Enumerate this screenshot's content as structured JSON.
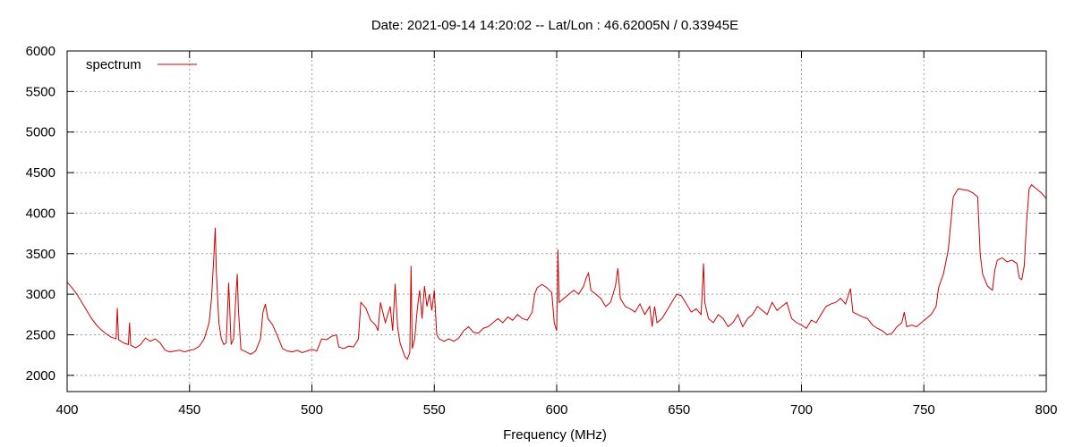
{
  "chart_data": {
    "type": "line",
    "title": "Date: 2021-09-14 14:20:02  --  Lat/Lon : 46.62005N / 0.33945E",
    "xlabel": "Frequency (MHz)",
    "ylabel": "",
    "xlim": [
      400,
      800
    ],
    "ylim": [
      1800,
      6000
    ],
    "x_ticks": [
      400,
      450,
      500,
      550,
      600,
      650,
      700,
      750,
      800
    ],
    "y_ticks": [
      2000,
      2500,
      3000,
      3500,
      4000,
      4500,
      5000,
      5500,
      6000
    ],
    "x_tick_labels": [
      "400",
      "450",
      "500",
      "550",
      "600",
      "650",
      "700",
      "750",
      "800"
    ],
    "y_tick_labels": [
      "2000",
      "2500",
      "3000",
      "3500",
      "4000",
      "4500",
      "5000",
      "5500",
      "6000"
    ],
    "grid": true,
    "legend": "top-left",
    "series": [
      {
        "name": "spectrum",
        "color": "#cc0000",
        "points": [
          [
            400,
            3150
          ],
          [
            402,
            3080
          ],
          [
            404,
            3000
          ],
          [
            406,
            2900
          ],
          [
            408,
            2800
          ],
          [
            410,
            2700
          ],
          [
            412,
            2620
          ],
          [
            414,
            2560
          ],
          [
            416,
            2510
          ],
          [
            418,
            2470
          ],
          [
            420,
            2450
          ],
          [
            420.5,
            2830
          ],
          [
            421,
            2440
          ],
          [
            423,
            2400
          ],
          [
            425,
            2380
          ],
          [
            425.5,
            2650
          ],
          [
            426,
            2370
          ],
          [
            428,
            2340
          ],
          [
            430,
            2380
          ],
          [
            432,
            2460
          ],
          [
            434,
            2420
          ],
          [
            436,
            2450
          ],
          [
            438,
            2400
          ],
          [
            440,
            2310
          ],
          [
            442,
            2290
          ],
          [
            444,
            2300
          ],
          [
            446,
            2310
          ],
          [
            448,
            2290
          ],
          [
            450,
            2310
          ],
          [
            452,
            2320
          ],
          [
            454,
            2360
          ],
          [
            456,
            2450
          ],
          [
            458,
            2650
          ],
          [
            459,
            2950
          ],
          [
            460,
            3500
          ],
          [
            460.5,
            3820
          ],
          [
            461,
            3250
          ],
          [
            462,
            2650
          ],
          [
            463,
            2450
          ],
          [
            464,
            2380
          ],
          [
            465,
            2400
          ],
          [
            466,
            3140
          ],
          [
            467,
            2380
          ],
          [
            468,
            2450
          ],
          [
            469,
            3000
          ],
          [
            469.5,
            3250
          ],
          [
            470,
            2800
          ],
          [
            471,
            2320
          ],
          [
            473,
            2290
          ],
          [
            475,
            2260
          ],
          [
            477,
            2300
          ],
          [
            479,
            2450
          ],
          [
            480,
            2780
          ],
          [
            481,
            2880
          ],
          [
            482,
            2700
          ],
          [
            484,
            2620
          ],
          [
            486,
            2480
          ],
          [
            488,
            2330
          ],
          [
            490,
            2300
          ],
          [
            492,
            2290
          ],
          [
            494,
            2310
          ],
          [
            496,
            2280
          ],
          [
            498,
            2300
          ],
          [
            500,
            2320
          ],
          [
            502,
            2300
          ],
          [
            504,
            2450
          ],
          [
            506,
            2440
          ],
          [
            508,
            2480
          ],
          [
            510,
            2500
          ],
          [
            511,
            2350
          ],
          [
            513,
            2330
          ],
          [
            515,
            2360
          ],
          [
            517,
            2350
          ],
          [
            519,
            2450
          ],
          [
            520,
            2900
          ],
          [
            522,
            2830
          ],
          [
            524,
            2680
          ],
          [
            526,
            2620
          ],
          [
            527,
            2550
          ],
          [
            528,
            2900
          ],
          [
            530,
            2650
          ],
          [
            532,
            2850
          ],
          [
            533,
            2550
          ],
          [
            534,
            3130
          ],
          [
            535,
            2600
          ],
          [
            536,
            2400
          ],
          [
            538,
            2230
          ],
          [
            539,
            2200
          ],
          [
            540,
            2280
          ],
          [
            540.5,
            3350
          ],
          [
            541,
            2330
          ],
          [
            542,
            2450
          ],
          [
            543,
            2800
          ],
          [
            544,
            3050
          ],
          [
            545,
            2700
          ],
          [
            546,
            3100
          ],
          [
            547,
            2850
          ],
          [
            548,
            3000
          ],
          [
            549,
            2800
          ],
          [
            550,
            3050
          ],
          [
            551,
            2500
          ],
          [
            552,
            2450
          ],
          [
            554,
            2420
          ],
          [
            556,
            2450
          ],
          [
            558,
            2420
          ],
          [
            560,
            2460
          ],
          [
            562,
            2550
          ],
          [
            564,
            2600
          ],
          [
            566,
            2530
          ],
          [
            568,
            2520
          ],
          [
            570,
            2580
          ],
          [
            572,
            2600
          ],
          [
            574,
            2650
          ],
          [
            576,
            2700
          ],
          [
            578,
            2650
          ],
          [
            580,
            2720
          ],
          [
            582,
            2680
          ],
          [
            584,
            2750
          ],
          [
            586,
            2700
          ],
          [
            588,
            2680
          ],
          [
            590,
            2780
          ],
          [
            591,
            3000
          ],
          [
            592,
            3080
          ],
          [
            594,
            3120
          ],
          [
            596,
            3080
          ],
          [
            598,
            3020
          ],
          [
            599,
            2650
          ],
          [
            600,
            2550
          ],
          [
            600.5,
            3550
          ],
          [
            601,
            2900
          ],
          [
            603,
            2950
          ],
          [
            605,
            3000
          ],
          [
            607,
            3050
          ],
          [
            609,
            3000
          ],
          [
            611,
            3100
          ],
          [
            612,
            3200
          ],
          [
            613,
            3260
          ],
          [
            614,
            3050
          ],
          [
            616,
            3000
          ],
          [
            618,
            2950
          ],
          [
            620,
            2850
          ],
          [
            622,
            2900
          ],
          [
            624,
            3100
          ],
          [
            625,
            3320
          ],
          [
            626,
            2950
          ],
          [
            628,
            2850
          ],
          [
            630,
            2820
          ],
          [
            632,
            2780
          ],
          [
            634,
            2880
          ],
          [
            636,
            2750
          ],
          [
            638,
            2850
          ],
          [
            639,
            2600
          ],
          [
            640,
            2850
          ],
          [
            641,
            2650
          ],
          [
            643,
            2700
          ],
          [
            645,
            2800
          ],
          [
            647,
            2900
          ],
          [
            649,
            3000
          ],
          [
            651,
            2980
          ],
          [
            653,
            2880
          ],
          [
            655,
            2780
          ],
          [
            657,
            2820
          ],
          [
            659,
            2750
          ],
          [
            660,
            3380
          ],
          [
            660.5,
            2900
          ],
          [
            662,
            2700
          ],
          [
            664,
            2650
          ],
          [
            666,
            2750
          ],
          [
            668,
            2700
          ],
          [
            670,
            2600
          ],
          [
            672,
            2650
          ],
          [
            674,
            2750
          ],
          [
            676,
            2600
          ],
          [
            678,
            2700
          ],
          [
            680,
            2750
          ],
          [
            682,
            2850
          ],
          [
            684,
            2800
          ],
          [
            686,
            2750
          ],
          [
            688,
            2900
          ],
          [
            690,
            2800
          ],
          [
            692,
            2850
          ],
          [
            694,
            2900
          ],
          [
            696,
            2700
          ],
          [
            698,
            2650
          ],
          [
            700,
            2620
          ],
          [
            702,
            2580
          ],
          [
            704,
            2680
          ],
          [
            706,
            2650
          ],
          [
            708,
            2750
          ],
          [
            710,
            2850
          ],
          [
            712,
            2880
          ],
          [
            714,
            2900
          ],
          [
            716,
            2950
          ],
          [
            718,
            2880
          ],
          [
            720,
            3070
          ],
          [
            721,
            2780
          ],
          [
            723,
            2750
          ],
          [
            725,
            2720
          ],
          [
            727,
            2700
          ],
          [
            729,
            2620
          ],
          [
            731,
            2580
          ],
          [
            733,
            2550
          ],
          [
            735,
            2500
          ],
          [
            737,
            2520
          ],
          [
            739,
            2600
          ],
          [
            741,
            2650
          ],
          [
            742,
            2780
          ],
          [
            743,
            2600
          ],
          [
            745,
            2620
          ],
          [
            747,
            2600
          ],
          [
            749,
            2650
          ],
          [
            751,
            2700
          ],
          [
            753,
            2750
          ],
          [
            755,
            2850
          ],
          [
            756,
            3080
          ],
          [
            758,
            3250
          ],
          [
            760,
            3550
          ],
          [
            762,
            4200
          ],
          [
            764,
            4300
          ],
          [
            766,
            4290
          ],
          [
            768,
            4280
          ],
          [
            770,
            4250
          ],
          [
            772,
            4200
          ],
          [
            773,
            3500
          ],
          [
            774,
            3250
          ],
          [
            776,
            3100
          ],
          [
            778,
            3050
          ],
          [
            779,
            3300
          ],
          [
            780,
            3420
          ],
          [
            782,
            3450
          ],
          [
            784,
            3400
          ],
          [
            786,
            3420
          ],
          [
            788,
            3380
          ],
          [
            789,
            3200
          ],
          [
            790,
            3180
          ],
          [
            791,
            3350
          ],
          [
            792,
            3900
          ],
          [
            793,
            4300
          ],
          [
            794,
            4350
          ],
          [
            796,
            4300
          ],
          [
            798,
            4250
          ],
          [
            800,
            4180
          ]
        ]
      }
    ]
  }
}
